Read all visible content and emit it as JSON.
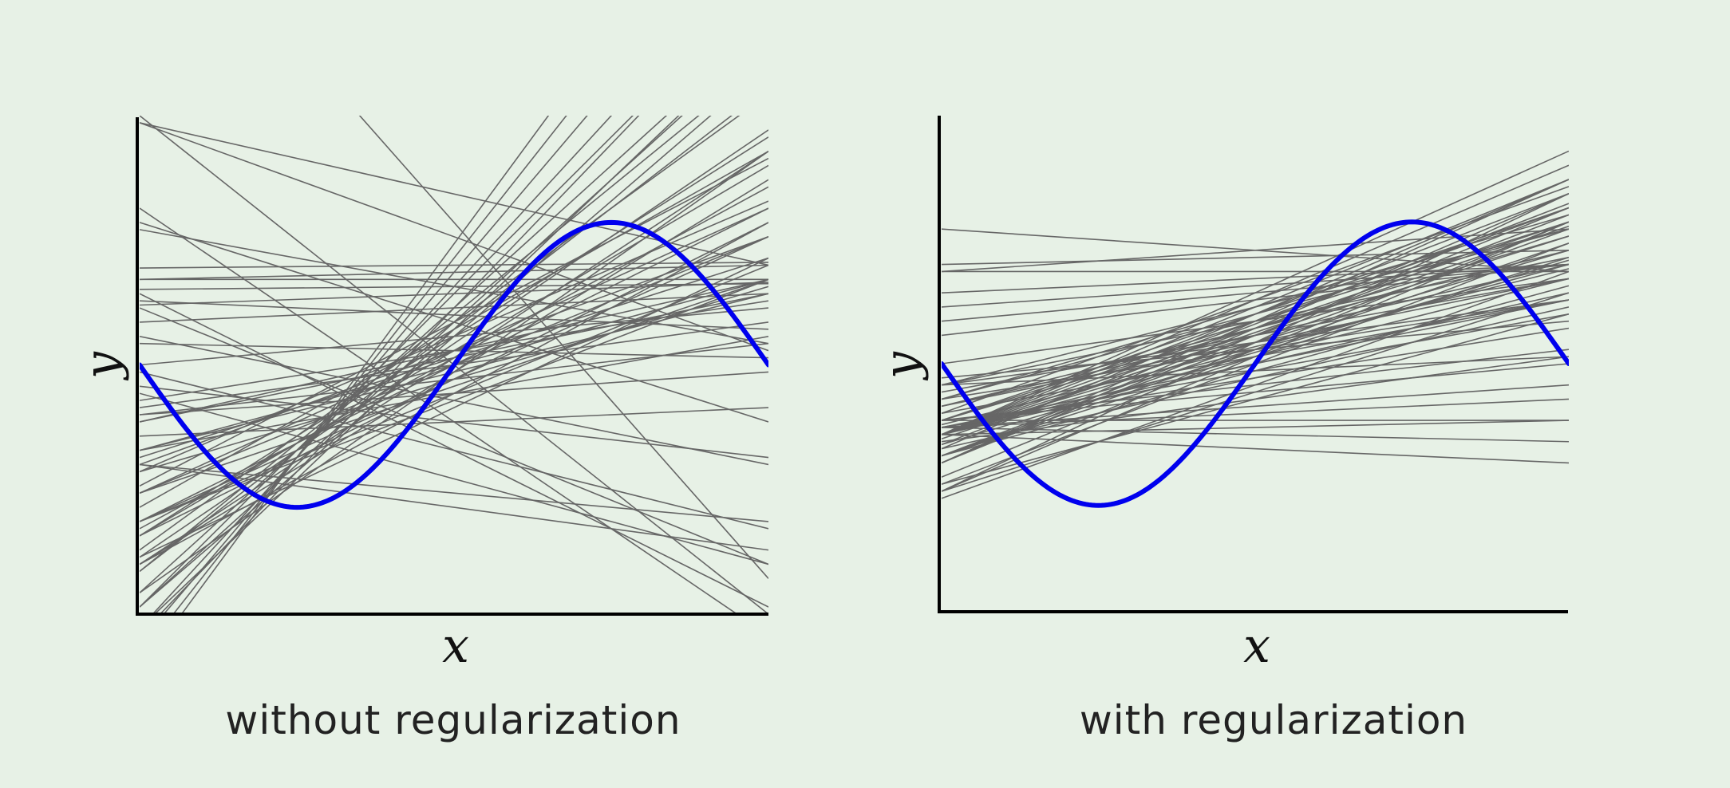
{
  "colors": {
    "background": "#e7f1e6",
    "sample_lines": "#666666",
    "true_function": "#0000ee",
    "axes": "#000000"
  },
  "chart_data": [
    {
      "type": "line",
      "caption": "without regularization",
      "xlabel": "x",
      "ylabel": "y",
      "xlim": [
        -1,
        1
      ],
      "ylim": [
        -1.75,
        1.75
      ],
      "grid": false,
      "legend": "none",
      "true_function": {
        "name": "",
        "expression": "sin(pi*x)",
        "color": "#0000ee"
      },
      "sample_lines": [
        {
          "slope": 1.0,
          "intercept": -0.1
        },
        {
          "slope": 1.1,
          "intercept": 0.0
        },
        {
          "slope": 1.2,
          "intercept": 0.05
        },
        {
          "slope": 1.3,
          "intercept": 0.1
        },
        {
          "slope": 0.9,
          "intercept": -0.2
        },
        {
          "slope": 1.4,
          "intercept": 0.2
        },
        {
          "slope": 1.6,
          "intercept": 0.3
        },
        {
          "slope": 1.8,
          "intercept": 0.35
        },
        {
          "slope": 2.0,
          "intercept": 0.4
        },
        {
          "slope": 2.2,
          "intercept": 0.5
        },
        {
          "slope": 2.4,
          "intercept": 0.55
        },
        {
          "slope": 2.6,
          "intercept": 0.65
        },
        {
          "slope": 2.0,
          "intercept": 0.3
        },
        {
          "slope": 2.3,
          "intercept": 0.4
        },
        {
          "slope": 2.8,
          "intercept": 0.75
        },
        {
          "slope": 3.0,
          "intercept": 0.85
        },
        {
          "slope": 1.7,
          "intercept": 0.25
        },
        {
          "slope": 1.5,
          "intercept": 0.15
        },
        {
          "slope": 0.8,
          "intercept": 0.1
        },
        {
          "slope": 0.7,
          "intercept": 0.05
        },
        {
          "slope": 0.6,
          "intercept": 0.0
        },
        {
          "slope": 0.5,
          "intercept": 0.1
        },
        {
          "slope": 0.9,
          "intercept": 0.0
        },
        {
          "slope": 1.0,
          "intercept": 0.1
        },
        {
          "slope": 1.1,
          "intercept": -0.1
        },
        {
          "slope": 0.65,
          "intercept": -0.1
        },
        {
          "slope": 0.75,
          "intercept": -0.15
        },
        {
          "slope": 0.85,
          "intercept": -0.25
        },
        {
          "slope": 1.2,
          "intercept": -0.2
        },
        {
          "slope": 1.35,
          "intercept": -0.05
        },
        {
          "slope": 1.45,
          "intercept": 0.05
        },
        {
          "slope": 1.55,
          "intercept": -0.05
        },
        {
          "slope": 1.9,
          "intercept": 0.2
        },
        {
          "slope": 2.1,
          "intercept": 0.25
        },
        {
          "slope": 1.25,
          "intercept": 0.25
        },
        {
          "slope": 0.95,
          "intercept": 0.2
        },
        {
          "slope": 0.55,
          "intercept": -0.05
        },
        {
          "slope": 0.45,
          "intercept": 0.05
        },
        {
          "slope": 1.15,
          "intercept": 0.3
        },
        {
          "slope": 1.05,
          "intercept": -0.3
        },
        {
          "slope": 0.02,
          "intercept": 0.7
        },
        {
          "slope": 0.05,
          "intercept": 0.65
        },
        {
          "slope": 0.02,
          "intercept": 0.55
        },
        {
          "slope": 0.0,
          "intercept": 0.6
        },
        {
          "slope": 0.08,
          "intercept": 0.5
        },
        {
          "slope": -0.1,
          "intercept": 0.35
        },
        {
          "slope": 0.1,
          "intercept": 0.4
        },
        {
          "slope": -0.4,
          "intercept": 0.55
        },
        {
          "slope": -0.7,
          "intercept": 0.3
        },
        {
          "slope": -0.9,
          "intercept": -0.5
        },
        {
          "slope": -0.8,
          "intercept": 0.9
        },
        {
          "slope": -0.5,
          "intercept": 1.2
        },
        {
          "slope": -0.6,
          "intercept": -0.8
        },
        {
          "slope": -0.25,
          "intercept": -0.4
        },
        {
          "slope": 0.1,
          "intercept": -0.4
        },
        {
          "slope": -0.45,
          "intercept": -0.25
        },
        {
          "slope": -0.55,
          "intercept": -0.6
        },
        {
          "slope": -1.1,
          "intercept": -0.6
        },
        {
          "slope": -1.5,
          "intercept": -0.4
        },
        {
          "slope": -1.75,
          "intercept": 0.0
        },
        {
          "slope": -2.5,
          "intercept": 1.0
        },
        {
          "slope": 0.15,
          "intercept": -0.2
        },
        {
          "slope": 0.25,
          "intercept": -0.1
        },
        {
          "slope": 0.3,
          "intercept": 0.0
        },
        {
          "slope": 0.35,
          "intercept": 0.1
        },
        {
          "slope": 0.4,
          "intercept": -0.2
        },
        {
          "slope": -0.3,
          "intercept": -1.0
        },
        {
          "slope": -0.2,
          "intercept": -0.9
        },
        {
          "slope": 0.2,
          "intercept": 0.2
        },
        {
          "slope": -0.05,
          "intercept": 0.1
        }
      ]
    },
    {
      "type": "line",
      "caption": "with regularization",
      "xlabel": "x",
      "ylabel": "y",
      "xlim": [
        -1,
        1
      ],
      "ylim": [
        -1.75,
        1.75
      ],
      "grid": false,
      "legend": "none",
      "true_function": {
        "name": "",
        "expression": "sin(pi*x)",
        "color": "#0000ee"
      },
      "sample_lines": [
        {
          "slope": 0.5,
          "intercept": 0.0
        },
        {
          "slope": 0.55,
          "intercept": 0.05
        },
        {
          "slope": 0.6,
          "intercept": 0.1
        },
        {
          "slope": 0.65,
          "intercept": 0.15
        },
        {
          "slope": 0.7,
          "intercept": 0.2
        },
        {
          "slope": 0.75,
          "intercept": 0.25
        },
        {
          "slope": 0.8,
          "intercept": 0.3
        },
        {
          "slope": 0.85,
          "intercept": 0.35
        },
        {
          "slope": 0.9,
          "intercept": 0.4
        },
        {
          "slope": 0.95,
          "intercept": 0.45
        },
        {
          "slope": 1.0,
          "intercept": 0.5
        },
        {
          "slope": 0.45,
          "intercept": 0.0
        },
        {
          "slope": 0.4,
          "intercept": 0.05
        },
        {
          "slope": 0.35,
          "intercept": 0.1
        },
        {
          "slope": 0.3,
          "intercept": 0.15
        },
        {
          "slope": 0.5,
          "intercept": 0.2
        },
        {
          "slope": 0.55,
          "intercept": 0.25
        },
        {
          "slope": 0.6,
          "intercept": 0.35
        },
        {
          "slope": 0.65,
          "intercept": 0.4
        },
        {
          "slope": 0.7,
          "intercept": 0.05
        },
        {
          "slope": 0.75,
          "intercept": 0.1
        },
        {
          "slope": 0.8,
          "intercept": 0.15
        },
        {
          "slope": 0.85,
          "intercept": 0.0
        },
        {
          "slope": 0.9,
          "intercept": 0.2
        },
        {
          "slope": 0.95,
          "intercept": 0.25
        },
        {
          "slope": 1.0,
          "intercept": 0.3
        },
        {
          "slope": 0.6,
          "intercept": -0.05
        },
        {
          "slope": 0.5,
          "intercept": -0.1
        },
        {
          "slope": 0.4,
          "intercept": -0.05
        },
        {
          "slope": 0.7,
          "intercept": 0.3
        },
        {
          "slope": 0.8,
          "intercept": 0.45
        },
        {
          "slope": 0.9,
          "intercept": 0.1
        },
        {
          "slope": 0.45,
          "intercept": 0.3
        },
        {
          "slope": 0.55,
          "intercept": 0.4
        },
        {
          "slope": 0.65,
          "intercept": 0.25
        },
        {
          "slope": 0.75,
          "intercept": 0.35
        },
        {
          "slope": 0.85,
          "intercept": 0.2
        },
        {
          "slope": 0.95,
          "intercept": 0.05
        },
        {
          "slope": 0.35,
          "intercept": -0.1
        },
        {
          "slope": 1.05,
          "intercept": 0.15
        },
        {
          "slope": 0.15,
          "intercept": 0.8
        },
        {
          "slope": 0.05,
          "intercept": 0.75
        },
        {
          "slope": 0.1,
          "intercept": 0.6
        },
        {
          "slope": 0.15,
          "intercept": 0.55
        },
        {
          "slope": 0.2,
          "intercept": 0.5
        },
        {
          "slope": -0.15,
          "intercept": 0.8
        },
        {
          "slope": 0.0,
          "intercept": 0.65
        },
        {
          "slope": 0.25,
          "intercept": 0.45
        },
        {
          "slope": 0.1,
          "intercept": -0.35
        },
        {
          "slope": 0.0,
          "intercept": -0.4
        },
        {
          "slope": -0.05,
          "intercept": -0.5
        },
        {
          "slope": 0.15,
          "intercept": -0.3
        },
        {
          "slope": -0.1,
          "intercept": -0.6
        },
        {
          "slope": 0.05,
          "intercept": -0.45
        },
        {
          "slope": 0.2,
          "intercept": -0.2
        },
        {
          "slope": 0.1,
          "intercept": -0.05
        },
        {
          "slope": 0.2,
          "intercept": 0.1
        },
        {
          "slope": 0.3,
          "intercept": -0.25
        },
        {
          "slope": 0.25,
          "intercept": -0.15
        },
        {
          "slope": 0.6,
          "intercept": -0.25
        },
        {
          "slope": 0.7,
          "intercept": -0.2
        },
        {
          "slope": 0.8,
          "intercept": -0.15
        },
        {
          "slope": 0.45,
          "intercept": 0.15
        },
        {
          "slope": 0.55,
          "intercept": 0.12
        },
        {
          "slope": 0.65,
          "intercept": 0.08
        },
        {
          "slope": 0.75,
          "intercept": 0.22
        },
        {
          "slope": 0.85,
          "intercept": 0.28
        },
        {
          "slope": 0.95,
          "intercept": 0.35
        },
        {
          "slope": 0.4,
          "intercept": 0.2
        },
        {
          "slope": 0.3,
          "intercept": 0.3
        }
      ]
    }
  ]
}
